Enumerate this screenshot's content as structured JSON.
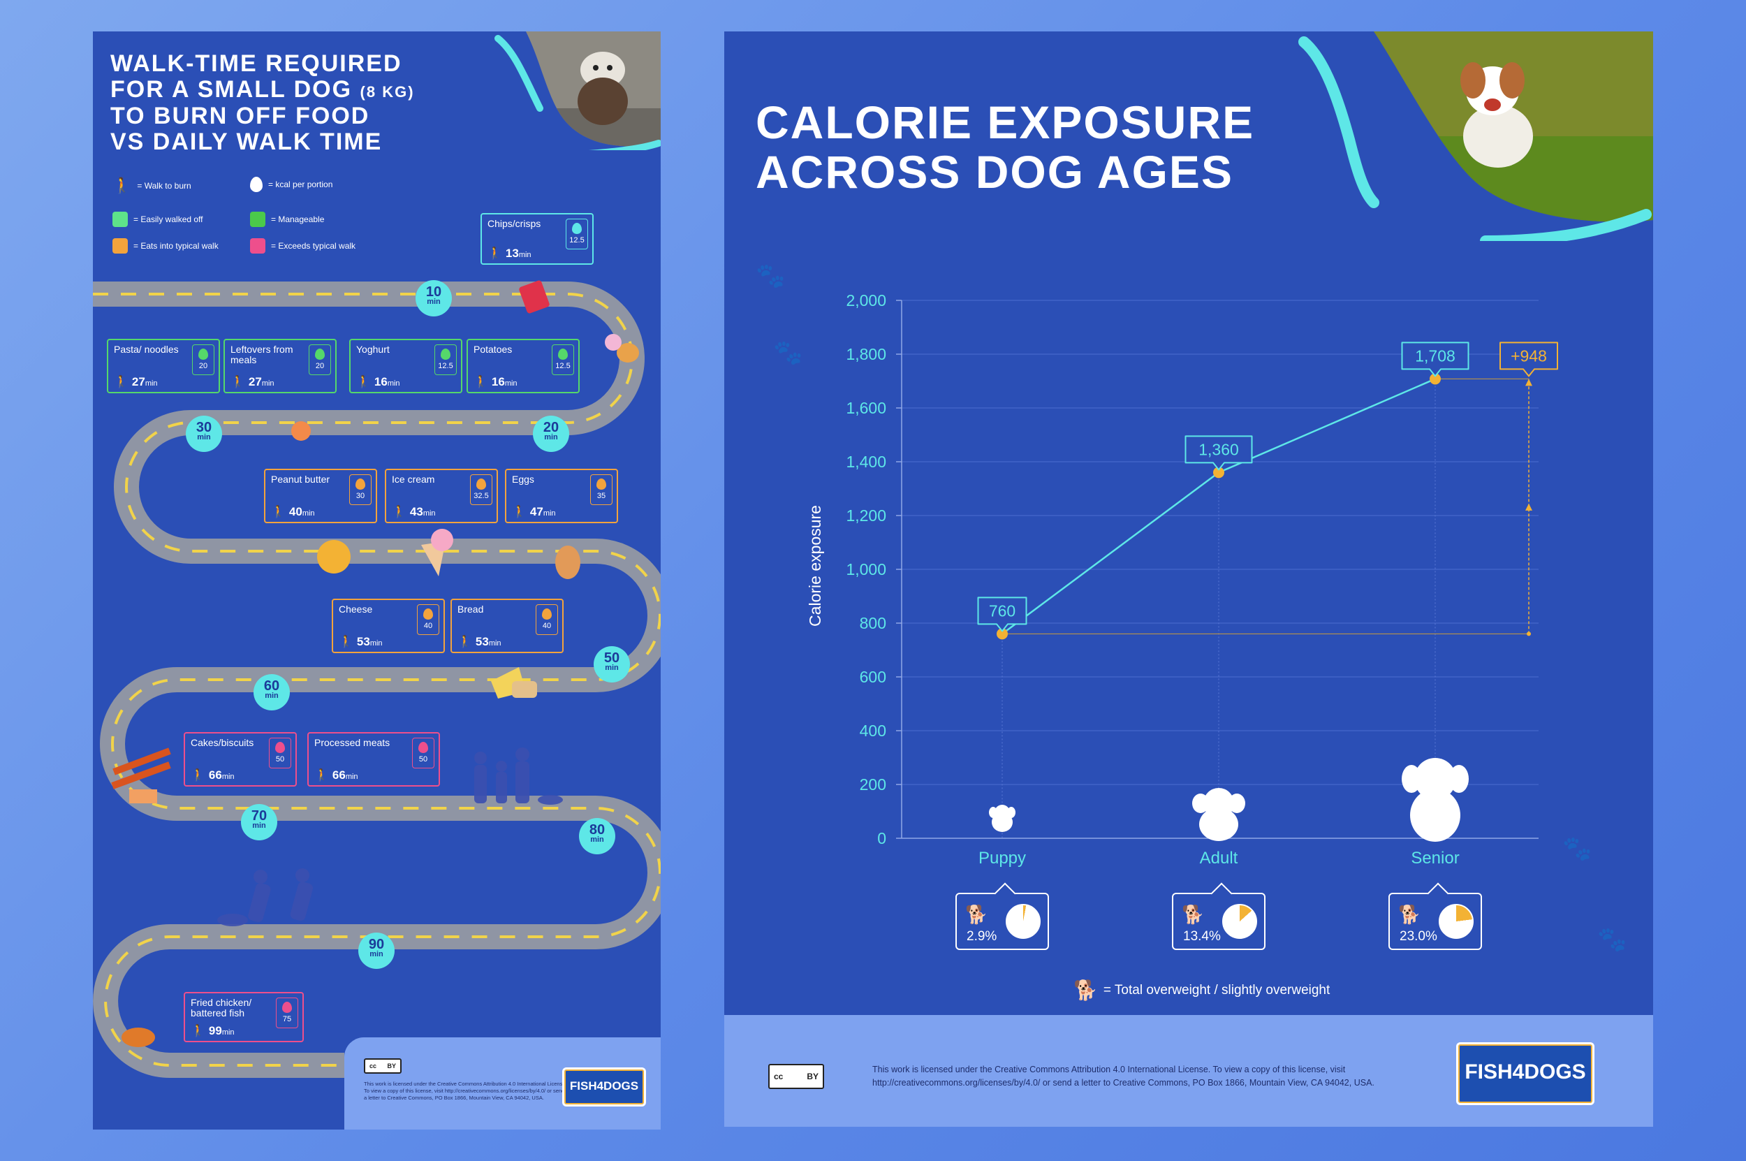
{
  "left_poster": {
    "title_line1": "WALK-TIME REQUIRED",
    "title_line2": "FOR A SMALL DOG",
    "title_kg": "(8 KG)",
    "title_line3": "TO BURN OFF FOOD",
    "title_line4": "VS DAILY WALK TIME",
    "legend": {
      "walk": "= Walk to burn",
      "kcal": "= kcal per portion",
      "easy": "= Easily walked off",
      "manageable": "= Manageable",
      "eats": "= Eats into typical walk",
      "exceeds": "= Exceeds typical walk"
    },
    "legend_colors": {
      "easy": "#5ee38a",
      "manageable": "#4bc94a",
      "eats": "#f3a33c",
      "exceeds": "#ee4f8c"
    },
    "milestones": [
      {
        "value": "10",
        "unit": "min"
      },
      {
        "value": "20",
        "unit": "min"
      },
      {
        "value": "30",
        "unit": "min"
      },
      {
        "value": "50",
        "unit": "min"
      },
      {
        "value": "60",
        "unit": "min"
      },
      {
        "value": "70",
        "unit": "min"
      },
      {
        "value": "80",
        "unit": "min"
      },
      {
        "value": "90",
        "unit": "min"
      }
    ],
    "foods": [
      {
        "name": "Chips/crisps",
        "time": "13",
        "unit": "min",
        "kcal": "12.5",
        "color": "teal"
      },
      {
        "name": "Pasta/ noodles",
        "time": "27",
        "unit": "min",
        "kcal": "20",
        "color": "green"
      },
      {
        "name": "Leftovers from meals",
        "time": "27",
        "unit": "min",
        "kcal": "20",
        "color": "green"
      },
      {
        "name": "Yoghurt",
        "time": "16",
        "unit": "min",
        "kcal": "12.5",
        "color": "green"
      },
      {
        "name": "Potatoes",
        "time": "16",
        "unit": "min",
        "kcal": "12.5",
        "color": "green"
      },
      {
        "name": "Peanut butter",
        "time": "40",
        "unit": "min",
        "kcal": "30",
        "color": "orange"
      },
      {
        "name": "Ice cream",
        "time": "43",
        "unit": "min",
        "kcal": "32.5",
        "color": "orange"
      },
      {
        "name": "Eggs",
        "time": "47",
        "unit": "min",
        "kcal": "35",
        "color": "orange"
      },
      {
        "name": "Cheese",
        "time": "53",
        "unit": "min",
        "kcal": "40",
        "color": "orange"
      },
      {
        "name": "Bread",
        "time": "53",
        "unit": "min",
        "kcal": "40",
        "color": "orange"
      },
      {
        "name": "Cakes/biscuits",
        "time": "66",
        "unit": "min",
        "kcal": "50",
        "color": "pink"
      },
      {
        "name": "Processed meats",
        "time": "66",
        "unit": "min",
        "kcal": "50",
        "color": "pink"
      },
      {
        "name": "Fried chicken/ battered fish",
        "time": "99",
        "unit": "min",
        "kcal": "75",
        "color": "pink"
      }
    ],
    "license_text": "This work is licensed under the Creative Commons Attribution 4.0 International License. To view a copy of this license, visit http://creativecommons.org/licenses/by/4.0/ or send a letter to Creative Commons, PO Box 1866, Mountain View, CA 94042, USA.",
    "logo": "FISH4DOGS"
  },
  "right_poster": {
    "title_line1": "CALORIE EXPOSURE",
    "title_line2": "ACROSS DOG AGES",
    "legend_note": "= Total overweight / slightly overweight",
    "license_text_1": "This work is licensed under the Creative Commons Attribution 4.0 International License. To view a copy of this license, visit",
    "license_text_2": "http://creativecommons.org/licenses/by/4.0/ or send a letter to Creative Commons, PO Box 1866, Mountain View, CA 94042, USA.",
    "logo": "FISH4DOGS",
    "cc_label": "cc",
    "by_label": "BY"
  },
  "colors": {
    "background": "#2b4fb6",
    "accent": "#5ee7e7",
    "highlight": "#f3b234",
    "footer": "#7ea2f0"
  },
  "chart_data": {
    "type": "line",
    "title": "CALORIE EXPOSURE ACROSS DOG AGES",
    "ylabel": "Calorie exposure",
    "xlabel": "",
    "categories": [
      "Puppy",
      "Adult",
      "Senior"
    ],
    "values": [
      760,
      1360,
      1708
    ],
    "data_labels": [
      "760",
      "1,360",
      "1,708"
    ],
    "difference_label": "+948",
    "ylim": [
      0,
      2000
    ],
    "yticks": [
      "0",
      "200",
      "400",
      "600",
      "800",
      "1,000",
      "1,200",
      "1,400",
      "1,600",
      "1,800",
      "2,000"
    ],
    "ytick_values": [
      0,
      200,
      400,
      600,
      800,
      1000,
      1200,
      1400,
      1600,
      1800,
      2000
    ],
    "grid": true,
    "overweight_share": [
      {
        "category": "Puppy",
        "label": "2.9%",
        "value": 2.9
      },
      {
        "category": "Adult",
        "label": "13.4%",
        "value": 13.4
      },
      {
        "category": "Senior",
        "label": "23.0%",
        "value": 23.0
      }
    ]
  }
}
